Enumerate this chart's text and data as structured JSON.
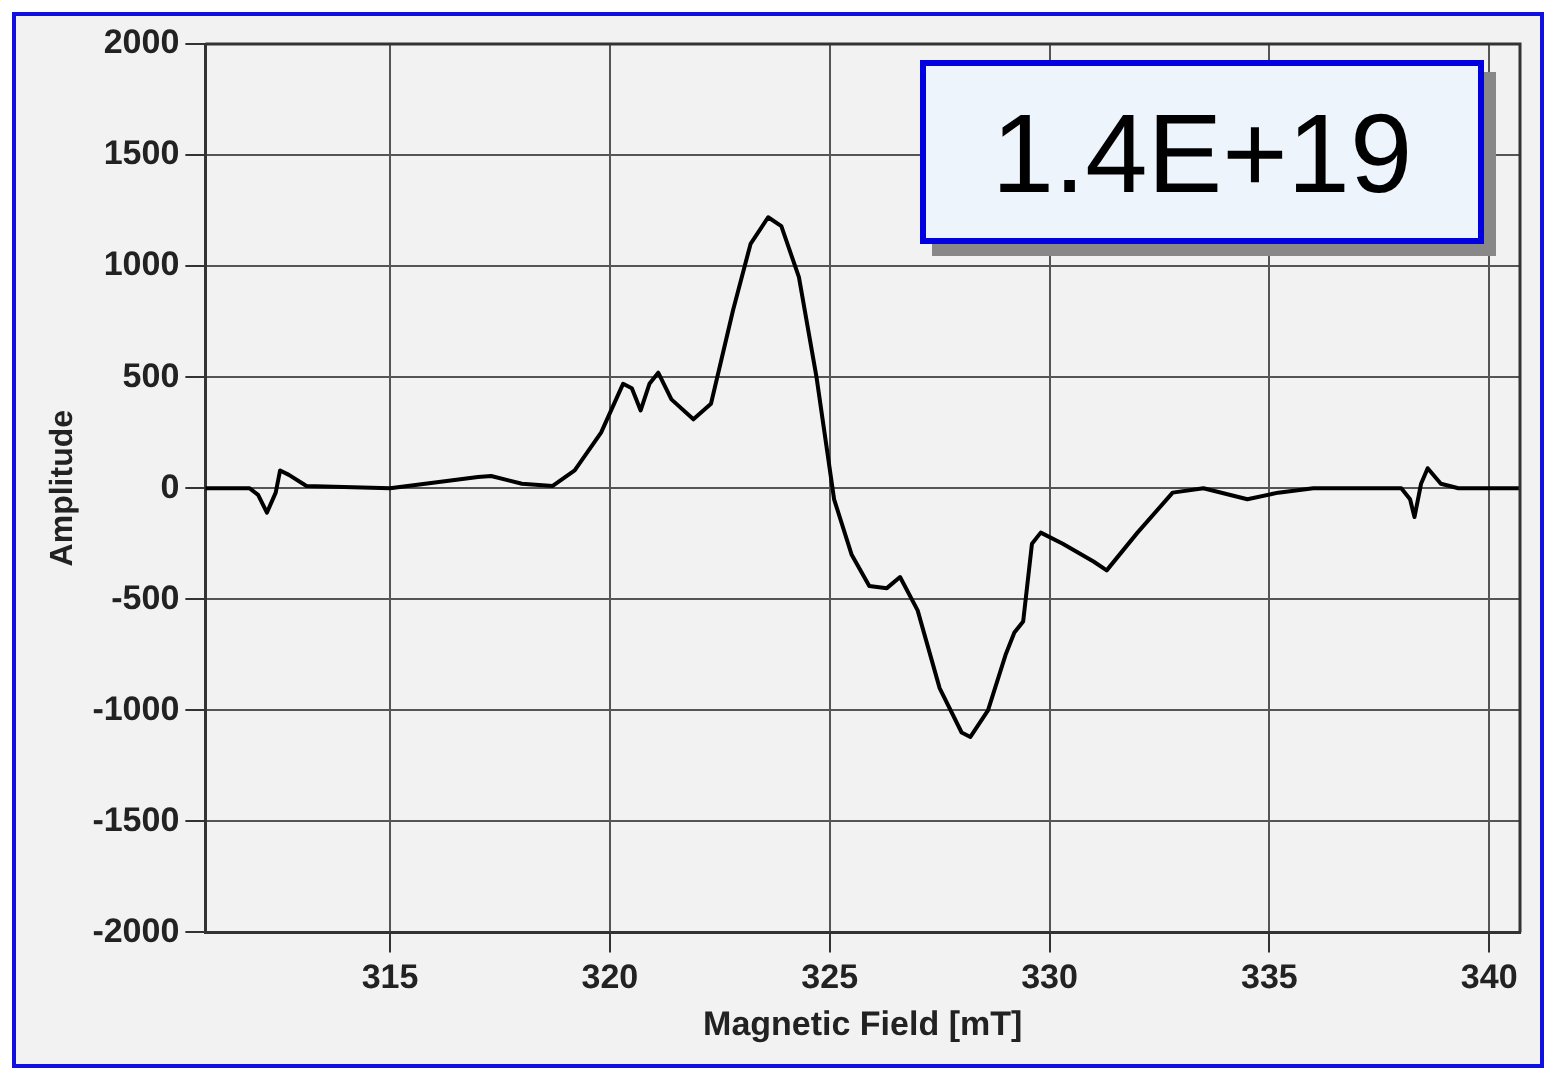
{
  "chart_data": {
    "type": "line",
    "xlabel": "Magnetic Field [mT]",
    "ylabel": "Amplitude",
    "annotations": [
      "1.4E+19"
    ],
    "xlim": [
      310.8,
      340.7
    ],
    "xticks": [
      315,
      320,
      325,
      330,
      335,
      340
    ],
    "ylim": [
      -2000,
      2000
    ],
    "yticks": [
      -2000,
      -1500,
      -1000,
      -500,
      0,
      500,
      1000,
      1500,
      2000
    ],
    "grid": true,
    "legend": false,
    "marker": "none",
    "line_style": "solid",
    "series": [
      {
        "color": "#000000",
        "x": [
          310.8,
          311.8,
          312.0,
          312.2,
          312.4,
          312.5,
          312.7,
          313.1,
          315,
          317,
          317.3,
          318,
          318.7,
          319.2,
          319.8,
          320.3,
          320.5,
          320.7,
          320.9,
          321.1,
          321.4,
          321.9,
          322.3,
          322.8,
          323.2,
          323.6,
          323.9,
          324.3,
          324.7,
          325.1,
          325.5,
          325.9,
          326.3,
          326.6,
          327.0,
          327.5,
          328.0,
          328.2,
          328.6,
          329.0,
          329.2,
          329.4,
          329.6,
          329.8,
          330.3,
          331.0,
          331.3,
          332.0,
          332.8,
          333.5,
          334.5,
          335.2,
          336,
          338.0,
          338.2,
          338.3,
          338.45,
          338.6,
          338.9,
          339.3,
          340.7
        ],
        "values": [
          0,
          0,
          -30,
          -110,
          -20,
          80,
          60,
          10,
          0,
          50,
          55,
          20,
          10,
          80,
          250,
          470,
          450,
          350,
          470,
          520,
          400,
          310,
          380,
          800,
          1100,
          1220,
          1180,
          950,
          500,
          -50,
          -300,
          -440,
          -450,
          -400,
          -550,
          -900,
          -1100,
          -1120,
          -1000,
          -750,
          -650,
          -600,
          -250,
          -200,
          -250,
          -330,
          -370,
          -200,
          -20,
          0,
          -50,
          -20,
          0,
          0,
          -50,
          -130,
          20,
          90,
          20,
          0,
          0
        ]
      }
    ]
  }
}
